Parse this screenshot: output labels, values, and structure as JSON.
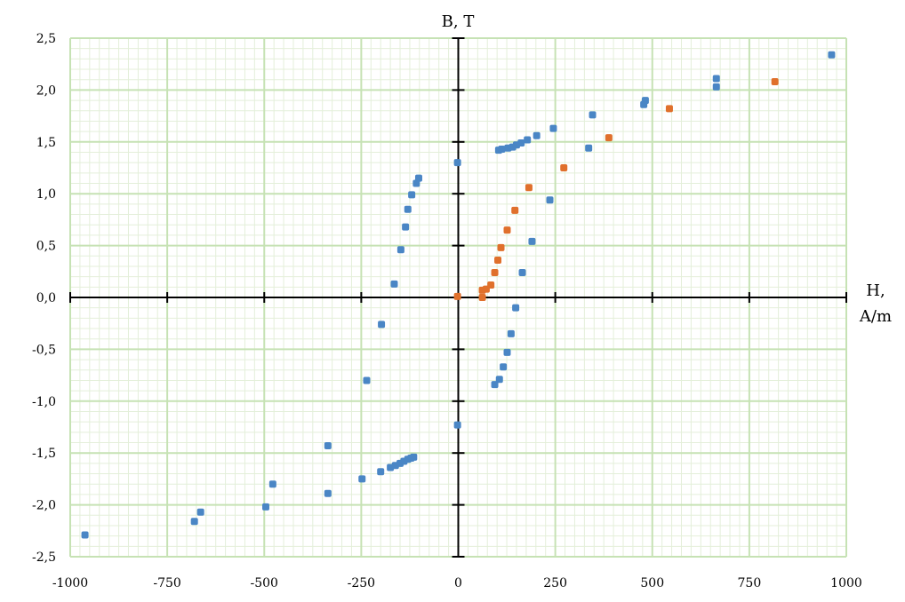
{
  "chart_data": {
    "type": "scatter",
    "title": "",
    "xlabel": [
      "H,",
      "A/m"
    ],
    "ylabel": "B, T",
    "xlim": [
      -1000,
      1000
    ],
    "ylim": [
      -2.5,
      2.5
    ],
    "x_ticks": [
      -1000,
      -750,
      -500,
      -250,
      0,
      250,
      500,
      750,
      1000
    ],
    "x_tick_labels": [
      "-1000",
      "-750",
      "-500",
      "-250",
      "0",
      "250",
      "500",
      "750",
      "1000"
    ],
    "y_ticks": [
      2.5,
      2.0,
      1.5,
      1.0,
      0.5,
      0.0,
      -0.5,
      -1.0,
      -1.5,
      -2.0,
      -2.5
    ],
    "y_tick_labels": [
      "2,5",
      "2,0",
      "1,5",
      "1,0",
      "0,5",
      "0,0",
      "-0,5",
      "-1,0",
      "-1,5",
      "-2,0",
      "-2,5"
    ],
    "grid": true,
    "legend": false,
    "series": [
      {
        "color": "#4a86c5",
        "points": [
          [
            -962,
            -2.29
          ],
          [
            -680,
            -2.16
          ],
          [
            -664,
            -2.07
          ],
          [
            -496,
            -2.02
          ],
          [
            -478,
            -1.8
          ],
          [
            -336,
            -1.89
          ],
          [
            -336,
            -1.43
          ],
          [
            -248,
            -1.75
          ],
          [
            -200,
            -1.68
          ],
          [
            -175,
            -1.64
          ],
          [
            -162,
            -1.62
          ],
          [
            -150,
            -1.6
          ],
          [
            -140,
            -1.58
          ],
          [
            -130,
            -1.56
          ],
          [
            -122,
            -1.55
          ],
          [
            -115,
            -1.54
          ],
          [
            -236,
            -0.8
          ],
          [
            -198,
            -0.26
          ],
          [
            -165,
            0.13
          ],
          [
            -148,
            0.46
          ],
          [
            -136,
            0.68
          ],
          [
            -130,
            0.85
          ],
          [
            -120,
            0.99
          ],
          [
            -108,
            1.1
          ],
          [
            -102,
            1.15
          ],
          [
            -2,
            1.3
          ],
          [
            -2,
            -1.23
          ],
          [
            962,
            2.34
          ],
          [
            665,
            2.11
          ],
          [
            665,
            2.03
          ],
          [
            482,
            1.9
          ],
          [
            478,
            1.86
          ],
          [
            346,
            1.76
          ],
          [
            336,
            1.44
          ],
          [
            245,
            1.63
          ],
          [
            202,
            1.56
          ],
          [
            178,
            1.52
          ],
          [
            162,
            1.49
          ],
          [
            150,
            1.47
          ],
          [
            140,
            1.45
          ],
          [
            128,
            1.44
          ],
          [
            112,
            1.43
          ],
          [
            104,
            1.42
          ],
          [
            236,
            0.94
          ],
          [
            190,
            0.54
          ],
          [
            165,
            0.24
          ],
          [
            148,
            -0.1
          ],
          [
            136,
            -0.35
          ],
          [
            126,
            -0.53
          ],
          [
            116,
            -0.67
          ],
          [
            106,
            -0.79
          ],
          [
            94,
            -0.84
          ]
        ]
      },
      {
        "color": "#e0702c",
        "points": [
          [
            -2,
            0.01
          ],
          [
            62,
            0.0
          ],
          [
            62,
            0.07
          ],
          [
            72,
            0.08
          ],
          [
            84,
            0.12
          ],
          [
            94,
            0.24
          ],
          [
            102,
            0.36
          ],
          [
            110,
            0.48
          ],
          [
            126,
            0.65
          ],
          [
            146,
            0.84
          ],
          [
            182,
            1.06
          ],
          [
            272,
            1.25
          ],
          [
            388,
            1.54
          ],
          [
            544,
            1.82
          ],
          [
            816,
            2.08
          ]
        ]
      }
    ]
  }
}
